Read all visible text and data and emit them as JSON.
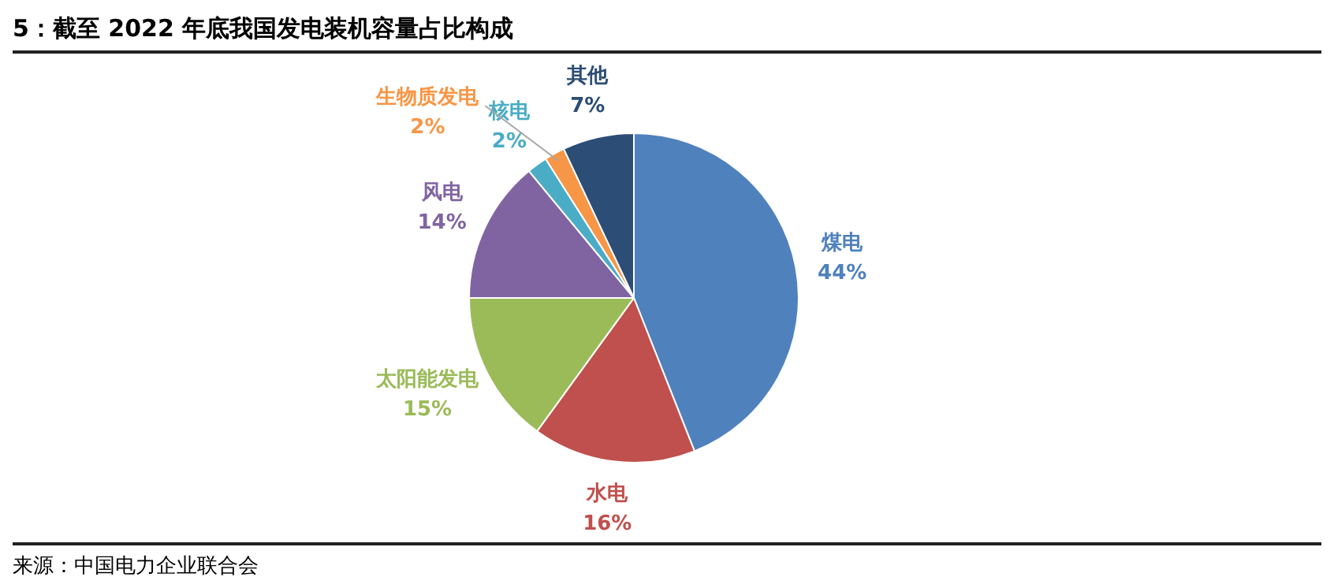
{
  "chart_data": {
    "type": "pie",
    "title": "5：截至 2022 年底我国发电装机容量占比构成",
    "categories": [
      "煤电",
      "水电",
      "太阳能发电",
      "风电",
      "核电",
      "生物质发电",
      "其他"
    ],
    "values": [
      44,
      16,
      15,
      14,
      2,
      2,
      7
    ],
    "colors": [
      "#4f81bd",
      "#c0504d",
      "#9bbb59",
      "#8064a2",
      "#4bacc6",
      "#f79646",
      "#2c4d75"
    ],
    "value_labels": [
      "44%",
      "16%",
      "15%",
      "14%",
      "2%",
      "2%",
      "7%"
    ],
    "legend": false,
    "annotations": [
      "来源：中国电力企业联合会"
    ]
  }
}
